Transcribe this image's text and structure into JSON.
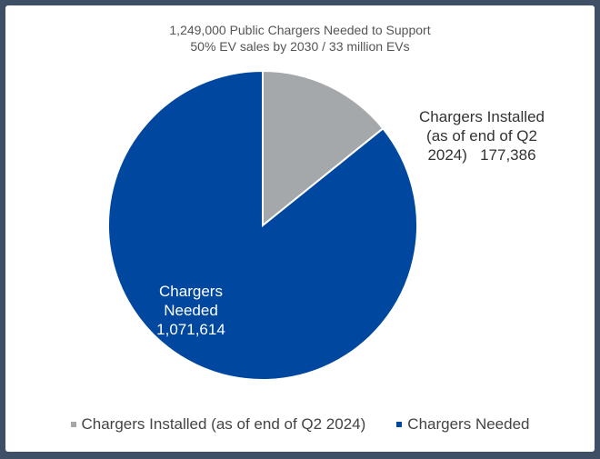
{
  "chart_data": {
    "type": "pie",
    "title": "1,249,000 Public Chargers Needed to Support 50% EV sales by 2030 / 33 million EVs",
    "title_lines": [
      "1,249,000 Public Chargers Needed to Support",
      "50% EV sales by 2030 / 33 million EVs"
    ],
    "slices": [
      {
        "name": "Chargers Installed (as of end of Q2 2024)",
        "value": 177386,
        "color": "#a5a8ab",
        "label_lines": [
          "Chargers Installed",
          "(as of end of Q2",
          "2024)   177,386"
        ]
      },
      {
        "name": "Chargers Needed",
        "value": 1071614,
        "color": "#0047a0",
        "label_lines": [
          "Chargers",
          "Needed",
          "1,071,614"
        ]
      }
    ],
    "legend": "bottom"
  }
}
